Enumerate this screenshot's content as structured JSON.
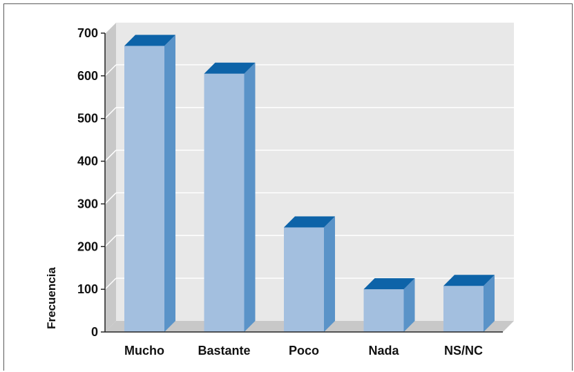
{
  "chart_data": {
    "type": "bar",
    "categories": [
      "Mucho",
      "Bastante",
      "Poco",
      "Nada",
      "NS/NC"
    ],
    "values": [
      670,
      605,
      245,
      100,
      108
    ],
    "title": "",
    "xlabel": "",
    "ylabel": "Frecuencia",
    "ylim": [
      0,
      700
    ],
    "yticks": [
      0,
      100,
      200,
      300,
      400,
      500,
      600,
      700
    ],
    "grid": true,
    "legend": "none",
    "colors": {
      "bar_front": "#a3bfdf",
      "bar_side": "#5a93c8",
      "bar_top": "#0d63a8",
      "wall": "#e8e8e8",
      "floor": "#c8c8c8",
      "side_wall": "#c8c8c8"
    }
  }
}
